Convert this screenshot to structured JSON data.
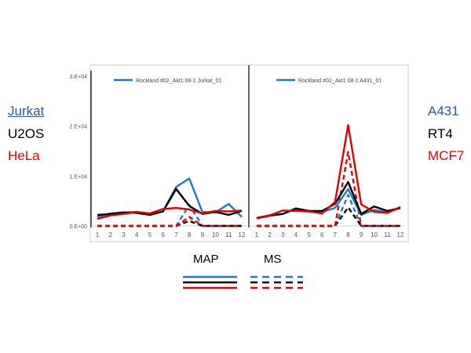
{
  "left_labels": [
    {
      "text": "Jurkat",
      "color": "#2e5a9e",
      "underline": true
    },
    {
      "text": "U2OS",
      "color": "#000000",
      "underline": false
    },
    {
      "text": "HeLa",
      "color": "#e10000",
      "underline": false
    }
  ],
  "right_labels": [
    {
      "text": "A431",
      "color": "#2e5a9e"
    },
    {
      "text": "RT4",
      "color": "#000000"
    },
    {
      "text": "MCF7",
      "color": "#e10000"
    }
  ],
  "legend": {
    "map_label": "MAP",
    "ms_label": "MS",
    "colors": [
      "#1f78c8",
      "#000000",
      "#e10000"
    ]
  },
  "chart_data": [
    {
      "type": "line",
      "title": "",
      "inset_legend": "Rockland #02_Akt1 08-1 Jurkat_01",
      "x": [
        1,
        2,
        3,
        4,
        5,
        6,
        7,
        8,
        9,
        10,
        11,
        12
      ],
      "ylim": [
        0,
        30000
      ],
      "yticks": [
        "0.E+00",
        "1.E+04",
        "2.E+04",
        "3.E+04"
      ],
      "ytick_values": [
        0,
        10000,
        20000,
        30000
      ],
      "series": [
        {
          "group": "MAP",
          "cell": "Jurkat",
          "color": "#1f78c8",
          "dash": false,
          "values": [
            1800,
            2500,
            2700,
            2800,
            2200,
            2900,
            7800,
            9500,
            2800,
            2700,
            4400,
            1800
          ]
        },
        {
          "group": "MAP",
          "cell": "U2OS",
          "color": "#000000",
          "dash": false,
          "values": [
            2200,
            2400,
            2700,
            2600,
            2200,
            2900,
            7400,
            4000,
            2400,
            2800,
            2200,
            3000
          ]
        },
        {
          "group": "MAP",
          "cell": "HeLa",
          "color": "#e10000",
          "dash": false,
          "values": [
            1400,
            2100,
            2400,
            2800,
            2500,
            3400,
            3600,
            3300,
            2500,
            3000,
            2900,
            3100
          ]
        },
        {
          "group": "MS",
          "cell": "Jurkat",
          "color": "#1f78c8",
          "dash": true,
          "values": [
            0,
            0,
            0,
            0,
            0,
            0,
            0,
            4200,
            0,
            0,
            0,
            0
          ]
        },
        {
          "group": "MS",
          "cell": "U2OS",
          "color": "#000000",
          "dash": true,
          "values": [
            0,
            0,
            0,
            0,
            0,
            0,
            0,
            1000,
            0,
            0,
            0,
            0
          ]
        },
        {
          "group": "MS",
          "cell": "HeLa",
          "color": "#e10000",
          "dash": true,
          "values": [
            0,
            0,
            0,
            0,
            0,
            0,
            0,
            1800,
            0,
            0,
            0,
            0
          ]
        }
      ]
    },
    {
      "type": "line",
      "title": "",
      "inset_legend": "Rockland #02_Akt1 08-1 A431_01",
      "x": [
        1,
        2,
        3,
        4,
        5,
        6,
        7,
        8,
        9,
        10,
        11,
        12
      ],
      "ylim": [
        0,
        30000
      ],
      "series": [
        {
          "group": "MAP",
          "cell": "A431",
          "color": "#1f78c8",
          "dash": false,
          "values": [
            1500,
            2000,
            2400,
            3400,
            2900,
            2800,
            3600,
            7400,
            2200,
            3200,
            2700,
            3600
          ]
        },
        {
          "group": "MAP",
          "cell": "RT4",
          "color": "#000000",
          "dash": false,
          "values": [
            1600,
            2100,
            2400,
            3500,
            3000,
            3000,
            4400,
            8800,
            2400,
            3900,
            3000,
            3600
          ]
        },
        {
          "group": "MAP",
          "cell": "MCF7",
          "color": "#e10000",
          "dash": false,
          "values": [
            1500,
            2100,
            3100,
            3000,
            2900,
            2500,
            4800,
            20200,
            4300,
            2800,
            2600,
            3800
          ]
        },
        {
          "group": "MS",
          "cell": "A431",
          "color": "#1f78c8",
          "dash": true,
          "values": [
            0,
            0,
            0,
            0,
            0,
            0,
            0,
            6200,
            0,
            0,
            0,
            0
          ]
        },
        {
          "group": "MS",
          "cell": "RT4",
          "color": "#000000",
          "dash": true,
          "values": [
            0,
            0,
            0,
            0,
            0,
            0,
            0,
            3700,
            0,
            0,
            0,
            0
          ]
        },
        {
          "group": "MS",
          "cell": "MCF7",
          "color": "#e10000",
          "dash": true,
          "values": [
            0,
            0,
            0,
            0,
            0,
            0,
            0,
            14800,
            0,
            0,
            0,
            0
          ]
        }
      ]
    }
  ]
}
